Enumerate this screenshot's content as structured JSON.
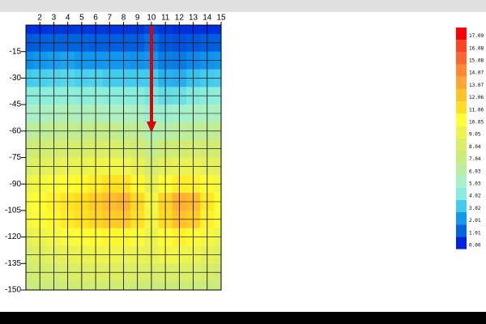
{
  "chart_data": {
    "type": "contour",
    "x": [
      1,
      2,
      3,
      4,
      5,
      6,
      7,
      8,
      9,
      10,
      11,
      12,
      13,
      14,
      15
    ],
    "y": [
      0,
      -10,
      -20,
      -30,
      -40,
      -50,
      -60,
      -70,
      -80,
      -90,
      -100,
      -110,
      -120,
      -130,
      -140,
      -150
    ],
    "z": [
      [
        0.2,
        0.2,
        0.3,
        0.3,
        0.3,
        0.3,
        0.3,
        0.3,
        0.3,
        0.5,
        0.3,
        0.2,
        0.2,
        0.2,
        0.2
      ],
      [
        0.8,
        0.9,
        1,
        1,
        1,
        0.9,
        0.9,
        0.9,
        0.9,
        1.2,
        0.8,
        0.7,
        0.8,
        0.9,
        0.9
      ],
      [
        1.8,
        2,
        2.1,
        2.2,
        2,
        2,
        2,
        2,
        1.9,
        2,
        1.5,
        1.4,
        1.7,
        1.9,
        2
      ],
      [
        3,
        3.1,
        3.2,
        3.3,
        3.1,
        3.2,
        3,
        3,
        3,
        3,
        2.5,
        2.4,
        2.8,
        3,
        3.1
      ],
      [
        4,
        4.1,
        4.2,
        4.3,
        4.1,
        4.2,
        4.1,
        4,
        4,
        3.8,
        3.5,
        3.6,
        3.9,
        4.1,
        4.2
      ],
      [
        5,
        5.1,
        5.3,
        5.5,
        5.3,
        5.4,
        5.2,
        5.2,
        5.2,
        4.6,
        4.6,
        4.9,
        5.1,
        5.2,
        5.3
      ],
      [
        6,
        6.2,
        6.4,
        6.5,
        6.4,
        6.6,
        6.6,
        6.4,
        6.3,
        5.5,
        5.8,
        6.1,
        6.2,
        6.3,
        6.4
      ],
      [
        7,
        7.3,
        7.6,
        7.7,
        7.6,
        7.8,
        7.9,
        7.7,
        7.4,
        6.5,
        7.1,
        7.4,
        7.5,
        7.4,
        7.4
      ],
      [
        8,
        8.3,
        8.6,
        8.8,
        8.8,
        9.1,
        9.3,
        9.2,
        8.7,
        7.5,
        8.5,
        8.9,
        8.9,
        8.6,
        8.4
      ],
      [
        9,
        9.4,
        9.8,
        10,
        10.2,
        10.6,
        11,
        11,
        10.2,
        8.6,
        10,
        10.6,
        10.5,
        9.9,
        9.4
      ],
      [
        9.6,
        10,
        10.5,
        10.9,
        11.2,
        11.7,
        12.3,
        12.6,
        11.3,
        9.4,
        11.5,
        12.8,
        12.4,
        10.8,
        10
      ],
      [
        9.4,
        9.8,
        10.3,
        10.7,
        11,
        11.4,
        11.8,
        11.9,
        11,
        9.3,
        11.2,
        12.2,
        11.8,
        10.5,
        9.8
      ],
      [
        8.6,
        9,
        9.4,
        9.7,
        9.9,
        10.1,
        10.3,
        10.3,
        9.8,
        8.9,
        10,
        10.5,
        10.2,
        9.5,
        9
      ],
      [
        7.9,
        8.2,
        8.5,
        8.7,
        8.8,
        9,
        9.1,
        9,
        8.8,
        8.5,
        9.3,
        9.1,
        9,
        8.6,
        8.2
      ],
      [
        7.3,
        7.5,
        7.7,
        7.9,
        8,
        8.1,
        8.1,
        8.1,
        7.9,
        7.7,
        7.9,
        8,
        7.9,
        7.7,
        7.4
      ],
      [
        6.8,
        7,
        7.1,
        7.2,
        7.3,
        7.3,
        7.4,
        7.3,
        7.2,
        7,
        7.1,
        7.2,
        7.1,
        7,
        6.9
      ]
    ],
    "xlim": [
      1,
      15
    ],
    "ylim": [
      -150,
      0
    ],
    "xticks": [
      2,
      3,
      4,
      5,
      6,
      7,
      8,
      9,
      10,
      11,
      12,
      13,
      14,
      15
    ],
    "yticks": [
      -15,
      -30,
      -45,
      -60,
      -75,
      -90,
      -105,
      -120,
      -135,
      -150
    ],
    "grid": true,
    "colorbar": [
      {
        "value": 17.09,
        "color": "#ff0000"
      },
      {
        "value": 16.08,
        "color": "#ff4422"
      },
      {
        "value": 15.08,
        "color": "#ff6633"
      },
      {
        "value": 14.07,
        "color": "#ff8833"
      },
      {
        "value": 13.07,
        "color": "#ffa733"
      },
      {
        "value": 12.06,
        "color": "#ffc42a"
      },
      {
        "value": 11.06,
        "color": "#ffe020"
      },
      {
        "value": 10.05,
        "color": "#ffff33"
      },
      {
        "value": 9.05,
        "color": "#eef44c"
      },
      {
        "value": 8.04,
        "color": "#dcee66"
      },
      {
        "value": 7.04,
        "color": "#cceb7a"
      },
      {
        "value": 6.03,
        "color": "#bbeea0"
      },
      {
        "value": 5.03,
        "color": "#aaf0c8"
      },
      {
        "value": 4.02,
        "color": "#88eedd"
      },
      {
        "value": 3.02,
        "color": "#44ccee"
      },
      {
        "value": 2.01,
        "color": "#1199ee"
      },
      {
        "value": 1.01,
        "color": "#0066dd"
      },
      {
        "value": 0,
        "label": "0.00",
        "color": "#0022dd"
      }
    ]
  }
}
